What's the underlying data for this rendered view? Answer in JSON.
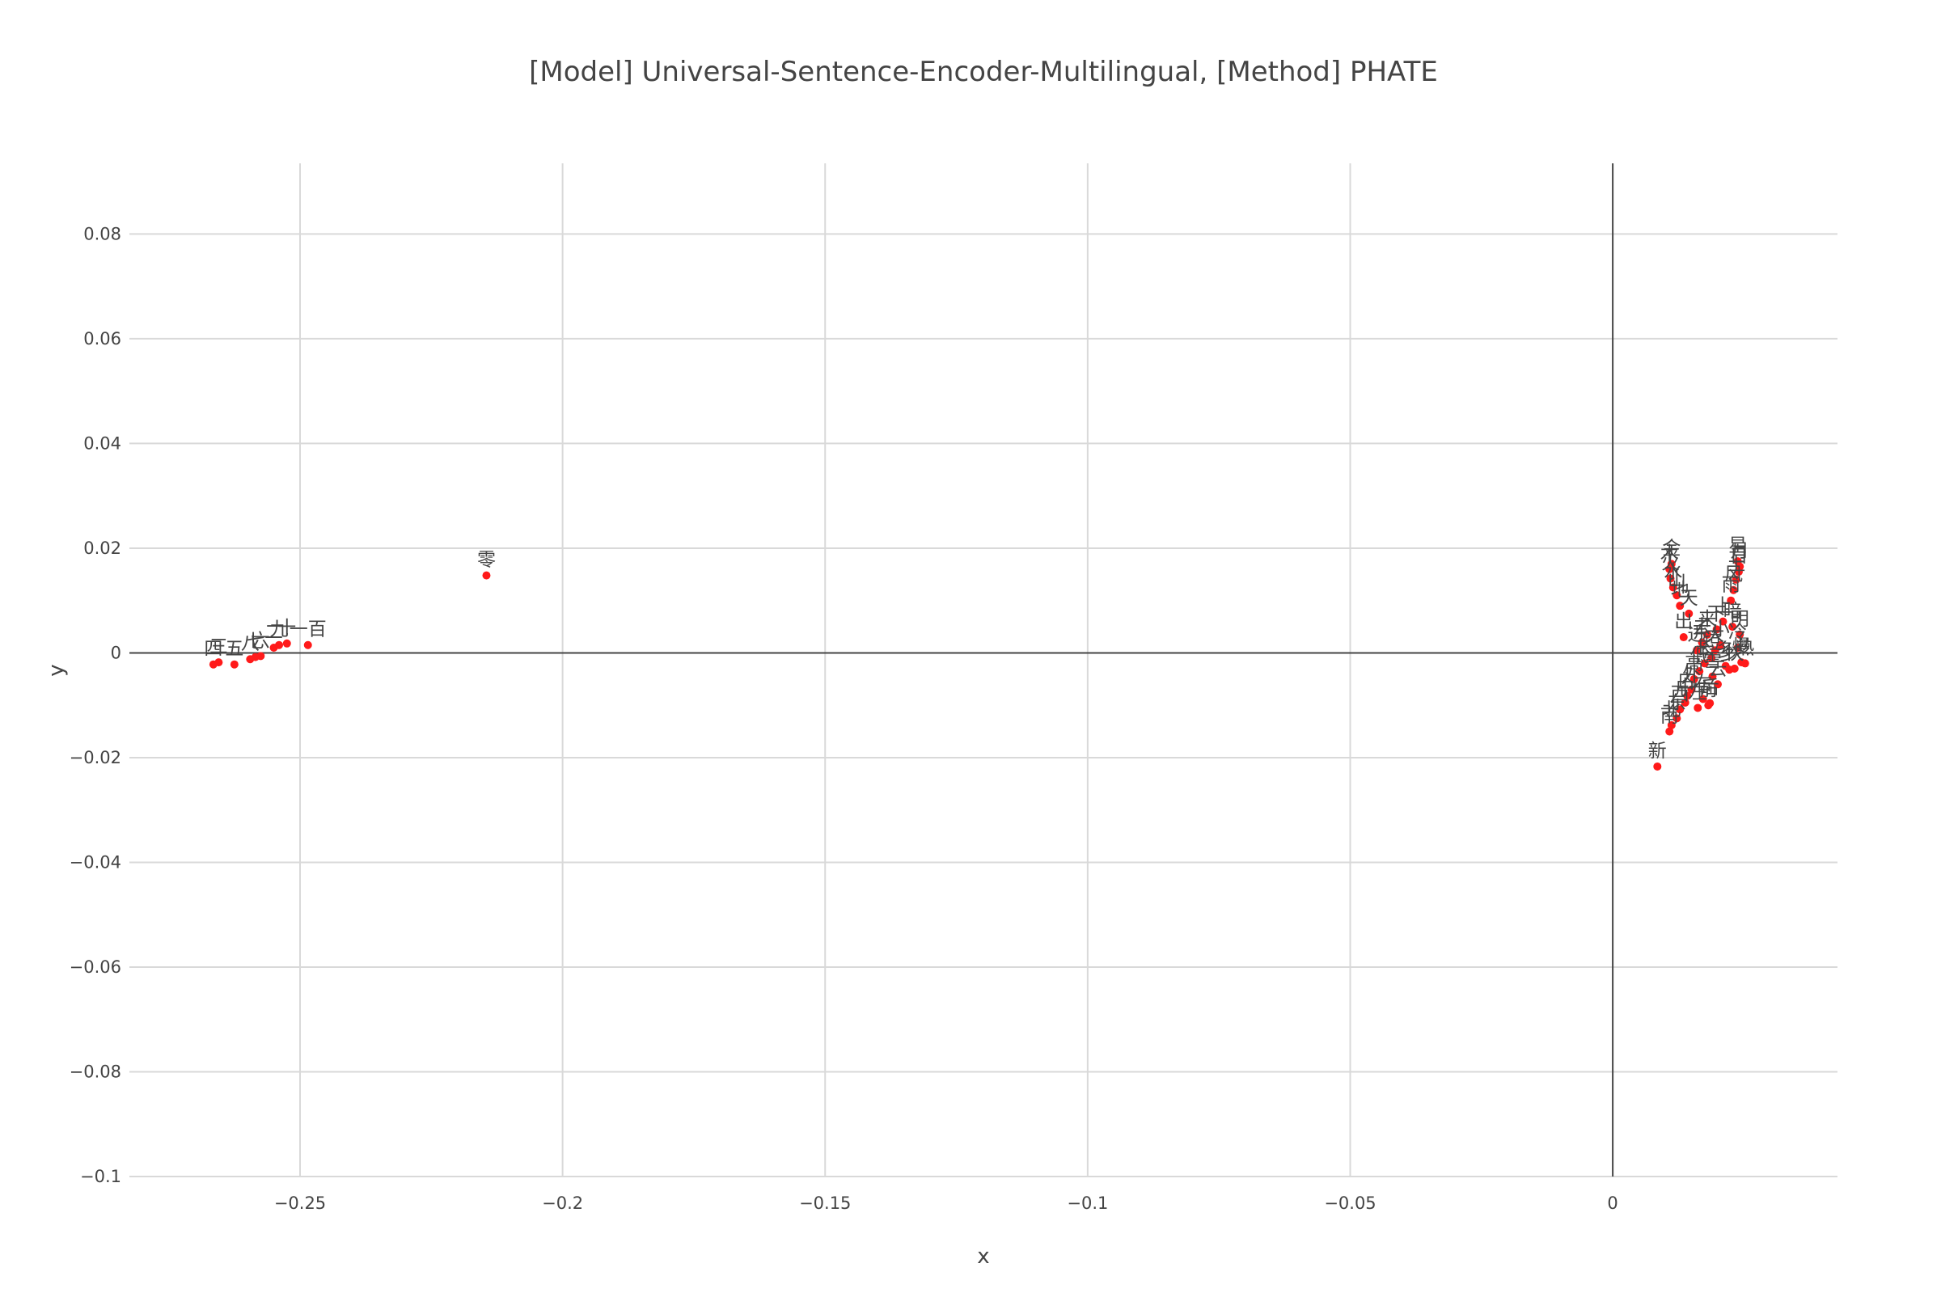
{
  "chart_data": {
    "type": "scatter",
    "title": "[Model] Universal-Sentence-Encoder-Multilingual, [Method] PHATE",
    "xlabel": "x",
    "ylabel": "y",
    "xlim": [
      -0.2825,
      0.0428
    ],
    "ylim": [
      -0.1,
      0.0935
    ],
    "x_ticks": [
      -0.25,
      -0.2,
      -0.15,
      -0.1,
      -0.05,
      0
    ],
    "x_tick_labels": [
      "−0.25",
      "−0.2",
      "−0.15",
      "−0.1",
      "−0.05",
      "0"
    ],
    "y_ticks": [
      0.08,
      0.06,
      0.04,
      0.02,
      0,
      -0.02,
      -0.04,
      -0.06,
      -0.08,
      -0.1
    ],
    "y_tick_labels": [
      "0.08",
      "0.06",
      "0.04",
      "0.02",
      "0",
      "−0.02",
      "−0.04",
      "−0.06",
      "−0.08",
      "−0.1"
    ],
    "grid": true,
    "marker_color": "#ff1a1a",
    "text_color": "#444444",
    "points": [
      {
        "x": -0.2665,
        "y": -0.0022,
        "label": "四"
      },
      {
        "x": -0.2655,
        "y": -0.0018,
        "label": "三"
      },
      {
        "x": -0.2625,
        "y": -0.0022,
        "label": "五"
      },
      {
        "x": -0.2595,
        "y": -0.0012,
        "label": "八"
      },
      {
        "x": -0.2585,
        "y": -0.0008,
        "label": "七"
      },
      {
        "x": -0.2575,
        "y": -0.0006,
        "label": "六"
      },
      {
        "x": -0.255,
        "y": 0.001,
        "label": "二"
      },
      {
        "x": -0.254,
        "y": 0.0015,
        "label": "九"
      },
      {
        "x": -0.2525,
        "y": 0.0018,
        "label": "十"
      },
      {
        "x": -0.2485,
        "y": 0.0015,
        "label": "一百"
      },
      {
        "x": -0.2145,
        "y": 0.0148,
        "label": "零"
      },
      {
        "x": 0.0085,
        "y": -0.0217,
        "label": "新"
      },
      {
        "x": 0.0108,
        "y": -0.015,
        "label": "南"
      },
      {
        "x": 0.0112,
        "y": -0.0138,
        "label": "北"
      },
      {
        "x": 0.0122,
        "y": -0.0125,
        "label": "东"
      },
      {
        "x": 0.0128,
        "y": -0.0108,
        "label": "西"
      },
      {
        "x": 0.0138,
        "y": -0.0095,
        "label": "中"
      },
      {
        "x": 0.0142,
        "y": -0.0082,
        "label": "内"
      },
      {
        "x": 0.015,
        "y": -0.007,
        "label": "外"
      },
      {
        "x": 0.0162,
        "y": -0.0105,
        "label": "左"
      },
      {
        "x": 0.0172,
        "y": -0.0088,
        "label": "右"
      },
      {
        "x": 0.0182,
        "y": -0.01,
        "label": "前"
      },
      {
        "x": 0.0185,
        "y": -0.0096,
        "label": "后"
      },
      {
        "x": 0.0155,
        "y": -0.005,
        "label": "高"
      },
      {
        "x": 0.0165,
        "y": -0.0035,
        "label": "低"
      },
      {
        "x": 0.0175,
        "y": -0.002,
        "label": "长"
      },
      {
        "x": 0.0188,
        "y": -0.001,
        "label": "短"
      },
      {
        "x": 0.0195,
        "y": 0.0005,
        "label": "大"
      },
      {
        "x": 0.0205,
        "y": 0.0015,
        "label": "小"
      },
      {
        "x": 0.0215,
        "y": -0.0025,
        "label": "多"
      },
      {
        "x": 0.0222,
        "y": -0.0032,
        "label": "少"
      },
      {
        "x": 0.0232,
        "y": -0.003,
        "label": "快"
      },
      {
        "x": 0.0245,
        "y": -0.0018,
        "label": "慢"
      },
      {
        "x": 0.0252,
        "y": -0.002,
        "label": "热"
      },
      {
        "x": 0.0238,
        "y": 0.001,
        "label": "冷"
      },
      {
        "x": 0.0242,
        "y": 0.0035,
        "label": "明"
      },
      {
        "x": 0.0228,
        "y": 0.005,
        "label": "暗"
      },
      {
        "x": 0.021,
        "y": 0.006,
        "label": "上"
      },
      {
        "x": 0.0198,
        "y": 0.0045,
        "label": "下"
      },
      {
        "x": 0.018,
        "y": 0.0035,
        "label": "来"
      },
      {
        "x": 0.017,
        "y": 0.002,
        "label": "去"
      },
      {
        "x": 0.016,
        "y": 0.0005,
        "label": "进"
      },
      {
        "x": 0.0135,
        "y": 0.003,
        "label": "出"
      },
      {
        "x": 0.0145,
        "y": 0.0075,
        "label": "天"
      },
      {
        "x": 0.0128,
        "y": 0.009,
        "label": "地"
      },
      {
        "x": 0.0122,
        "y": 0.011,
        "label": "山"
      },
      {
        "x": 0.0115,
        "y": 0.0125,
        "label": "水"
      },
      {
        "x": 0.011,
        "y": 0.0142,
        "label": "火"
      },
      {
        "x": 0.0108,
        "y": 0.016,
        "label": "木"
      },
      {
        "x": 0.0112,
        "y": 0.017,
        "label": "金"
      },
      {
        "x": 0.0235,
        "y": 0.014,
        "label": "土"
      },
      {
        "x": 0.024,
        "y": 0.0155,
        "label": "日"
      },
      {
        "x": 0.0242,
        "y": 0.0165,
        "label": "月"
      },
      {
        "x": 0.0238,
        "y": 0.0175,
        "label": "星"
      },
      {
        "x": 0.023,
        "y": 0.012,
        "label": "风"
      },
      {
        "x": 0.0225,
        "y": 0.01,
        "label": "雨"
      },
      {
        "x": 0.019,
        "y": -0.0045,
        "label": "雪"
      },
      {
        "x": 0.02,
        "y": -0.006,
        "label": "云"
      }
    ]
  }
}
